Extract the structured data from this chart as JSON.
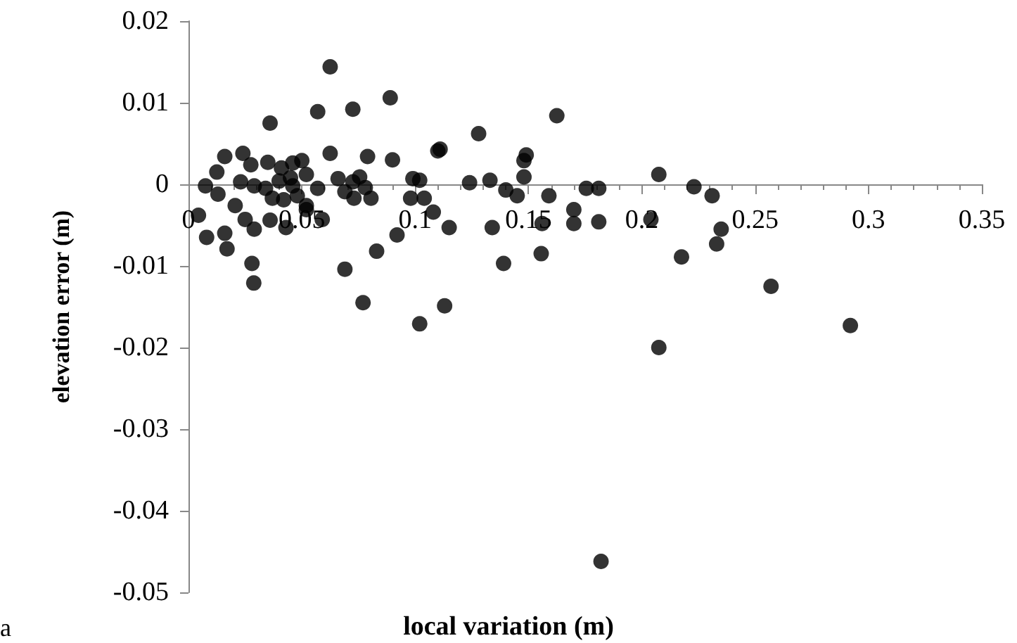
{
  "chart_data": {
    "type": "scatter",
    "xlabel": "local variation (m)",
    "ylabel": "elevation error (m)",
    "annotations": [
      "a"
    ],
    "marker": "circle",
    "grid": false,
    "xlim": [
      0,
      0.35
    ],
    "xticks": [
      0,
      0.05,
      0.1,
      0.15,
      0.2,
      0.25,
      0.3,
      0.35
    ],
    "ylim": [
      -0.05,
      0.02
    ],
    "yticks": [
      -0.05,
      -0.04,
      -0.03,
      -0.02,
      -0.01,
      0,
      0.01,
      0.02
    ],
    "series": [
      {
        "color": "#000000",
        "x": [
          0.0625,
          0.057,
          0.0725,
          0.089,
          0.036,
          0.016,
          0.024,
          0.0625,
          0.079,
          0.09,
          0.11,
          0.0125,
          0.0075,
          0.013,
          0.0275,
          0.035,
          0.041,
          0.046,
          0.05,
          0.052,
          0.04,
          0.045,
          0.023,
          0.029,
          0.034,
          0.037,
          0.042,
          0.048,
          0.052,
          0.057,
          0.046,
          0.066,
          0.0725,
          0.0755,
          0.069,
          0.073,
          0.0805,
          0.078,
          0.099,
          0.102,
          0.098,
          0.104,
          0.0044,
          0.0206,
          0.008,
          0.016,
          0.017,
          0.025,
          0.029,
          0.036,
          0.043,
          0.052,
          0.059,
          0.028,
          0.0288,
          0.069,
          0.077,
          0.083,
          0.092,
          0.108,
          0.102,
          0.113,
          0.1625,
          0.128,
          0.111,
          0.149,
          0.148,
          0.148,
          0.124,
          0.133,
          0.14,
          0.145,
          0.159,
          0.1755,
          0.181,
          0.2075,
          0.223,
          0.231,
          0.115,
          0.134,
          0.156,
          0.17,
          0.17,
          0.181,
          0.204,
          0.1556,
          0.139,
          0.2175,
          0.235,
          0.233,
          0.257,
          0.292,
          0.2075,
          0.182
        ],
        "values": [
          0.0144,
          0.0089,
          0.0092,
          0.0106,
          0.0075,
          0.0034,
          0.0038,
          0.0038,
          0.0034,
          0.003,
          0.0041,
          0.0015,
          -0.0002,
          -0.0012,
          0.0024,
          0.0027,
          0.002,
          0.0026,
          0.0029,
          0.0012,
          0.0004,
          0.0008,
          0.0003,
          -0.0002,
          -0.0005,
          -0.0017,
          -0.0019,
          -0.0014,
          -0.0026,
          -0.0005,
          -0.0002,
          0.0007,
          0.0003,
          0.0009,
          -0.0009,
          -0.0017,
          -0.0017,
          -0.0004,
          0.0007,
          0.0005,
          -0.0017,
          -0.0017,
          -0.0038,
          -0.0026,
          -0.0065,
          -0.006,
          -0.0079,
          -0.0043,
          -0.0055,
          -0.0044,
          -0.0053,
          -0.0031,
          -0.0043,
          -0.0097,
          -0.0121,
          -0.0104,
          -0.0145,
          -0.0082,
          -0.0062,
          -0.0034,
          -0.0171,
          -0.0149,
          0.0084,
          0.0062,
          0.0043,
          0.0036,
          0.0029,
          0.0009,
          0.0002,
          0.0005,
          -0.0007,
          -0.0014,
          -0.0014,
          -0.0005,
          -0.0005,
          0.0012,
          -0.0003,
          -0.0014,
          -0.0053,
          -0.0053,
          -0.0048,
          -0.0031,
          -0.0048,
          -0.0046,
          -0.0043,
          -0.0085,
          -0.0097,
          -0.0089,
          -0.0055,
          -0.0073,
          -0.0125,
          -0.0173,
          -0.02,
          -0.0462
        ]
      }
    ]
  }
}
